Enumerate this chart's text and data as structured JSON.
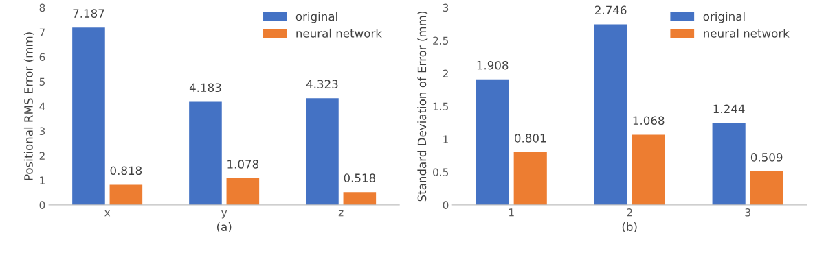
{
  "chart_data": [
    {
      "type": "bar",
      "categories": [
        "x",
        "y",
        "z"
      ],
      "xlabel": "(a)",
      "ylabel": "Positional RMS Error (mm)",
      "series": [
        {
          "name": "original",
          "color": "#4472c4",
          "values": [
            7.187,
            4.183,
            4.323
          ]
        },
        {
          "name": "neural network",
          "color": "#ed7d31",
          "values": [
            0.818,
            1.078,
            0.518
          ]
        }
      ],
      "ylim": [
        0,
        8
      ],
      "yticks": [
        0,
        1,
        2,
        3,
        4,
        5,
        6,
        7,
        8
      ],
      "data_labels": true,
      "legend": "top right",
      "grid": false
    },
    {
      "type": "bar",
      "categories": [
        "1",
        "2",
        "3"
      ],
      "xlabel": "(b)",
      "ylabel": "Standard Deviation of Error (mm)",
      "series": [
        {
          "name": "original",
          "color": "#4472c4",
          "values": [
            1.908,
            2.746,
            1.244
          ]
        },
        {
          "name": "neural network",
          "color": "#ed7d31",
          "values": [
            0.801,
            1.068,
            0.509
          ]
        }
      ],
      "ylim": [
        0,
        3
      ],
      "yticks": [
        0,
        0.5,
        1,
        1.5,
        2,
        2.5,
        3
      ],
      "data_labels": true,
      "legend": "top right",
      "grid": false
    }
  ]
}
